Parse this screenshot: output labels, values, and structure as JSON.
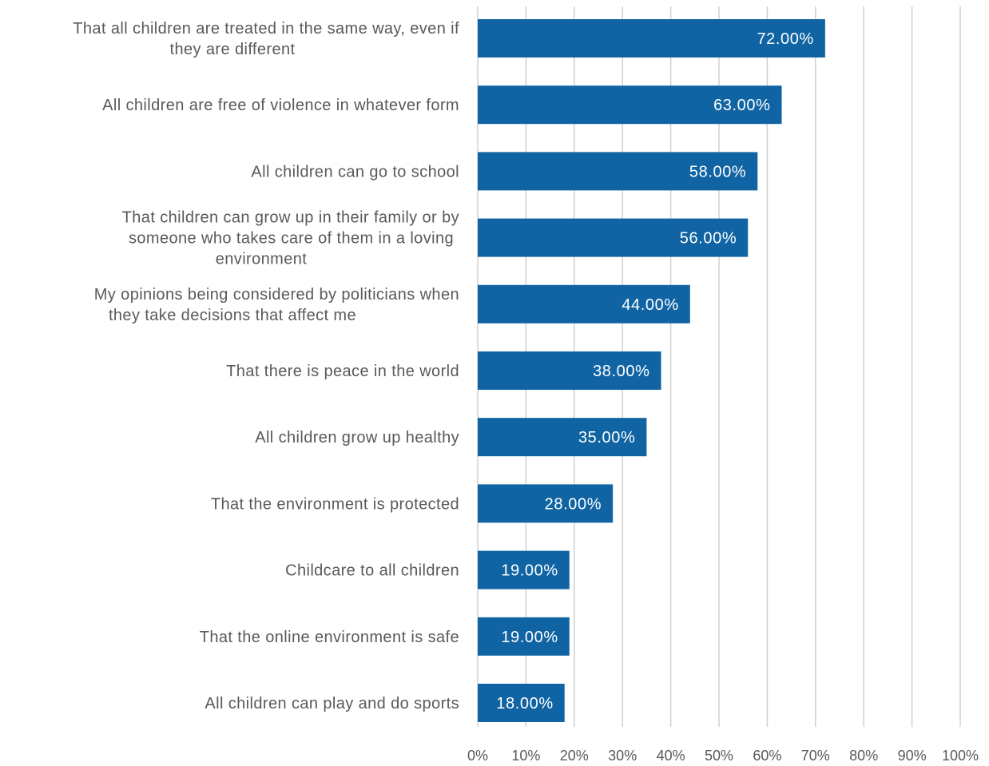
{
  "chart_data": {
    "type": "bar",
    "orientation": "horizontal",
    "categories": [
      "That all children are treated in the same way, even if they are different",
      "All children are free of violence in whatever form",
      "All children can go to school",
      "That children can grow up in their family or by someone who takes care of them in a loving environment",
      "My opinions being considered by politicians when they take decisions that affect me",
      "That there is peace in the world",
      "All children grow up healthy",
      "That the environment is protected",
      "Childcare to all children",
      "That the online environment is safe",
      "All children can play and do sports"
    ],
    "category_lines": [
      [
        "That all children are treated in the same way, even if",
        "they are different"
      ],
      [
        "All children are free of violence in whatever form"
      ],
      [
        "All children can go to school"
      ],
      [
        "That children can grow up in their family or by",
        "someone who takes care of them in a loving",
        "environment"
      ],
      [
        "My opinions being considered by politicians when",
        "they take decisions that affect me"
      ],
      [
        "That there is peace in the world"
      ],
      [
        "All children grow up healthy"
      ],
      [
        "That the environment is protected"
      ],
      [
        "Childcare to all children"
      ],
      [
        "That the online environment is safe"
      ],
      [
        "All children can play and do sports"
      ]
    ],
    "values": [
      72,
      63,
      58,
      56,
      44,
      38,
      35,
      28,
      19,
      19,
      18
    ],
    "data_labels": [
      "72.00%",
      "63.00%",
      "58.00%",
      "56.00%",
      "44.00%",
      "38.00%",
      "35.00%",
      "28.00%",
      "19.00%",
      "19.00%",
      "18.00%"
    ],
    "x_ticks": [
      "0%",
      "10%",
      "20%",
      "30%",
      "40%",
      "50%",
      "60%",
      "70%",
      "80%",
      "90%",
      "100%"
    ],
    "xlim": [
      0,
      100
    ],
    "grid": "vertical",
    "legend": "none",
    "title": "",
    "xlabel": "",
    "ylabel": "",
    "colors": {
      "bar": "#1064a3",
      "grid": "#d0d0d0",
      "text": "#595959",
      "data_label": "#ffffff"
    }
  }
}
